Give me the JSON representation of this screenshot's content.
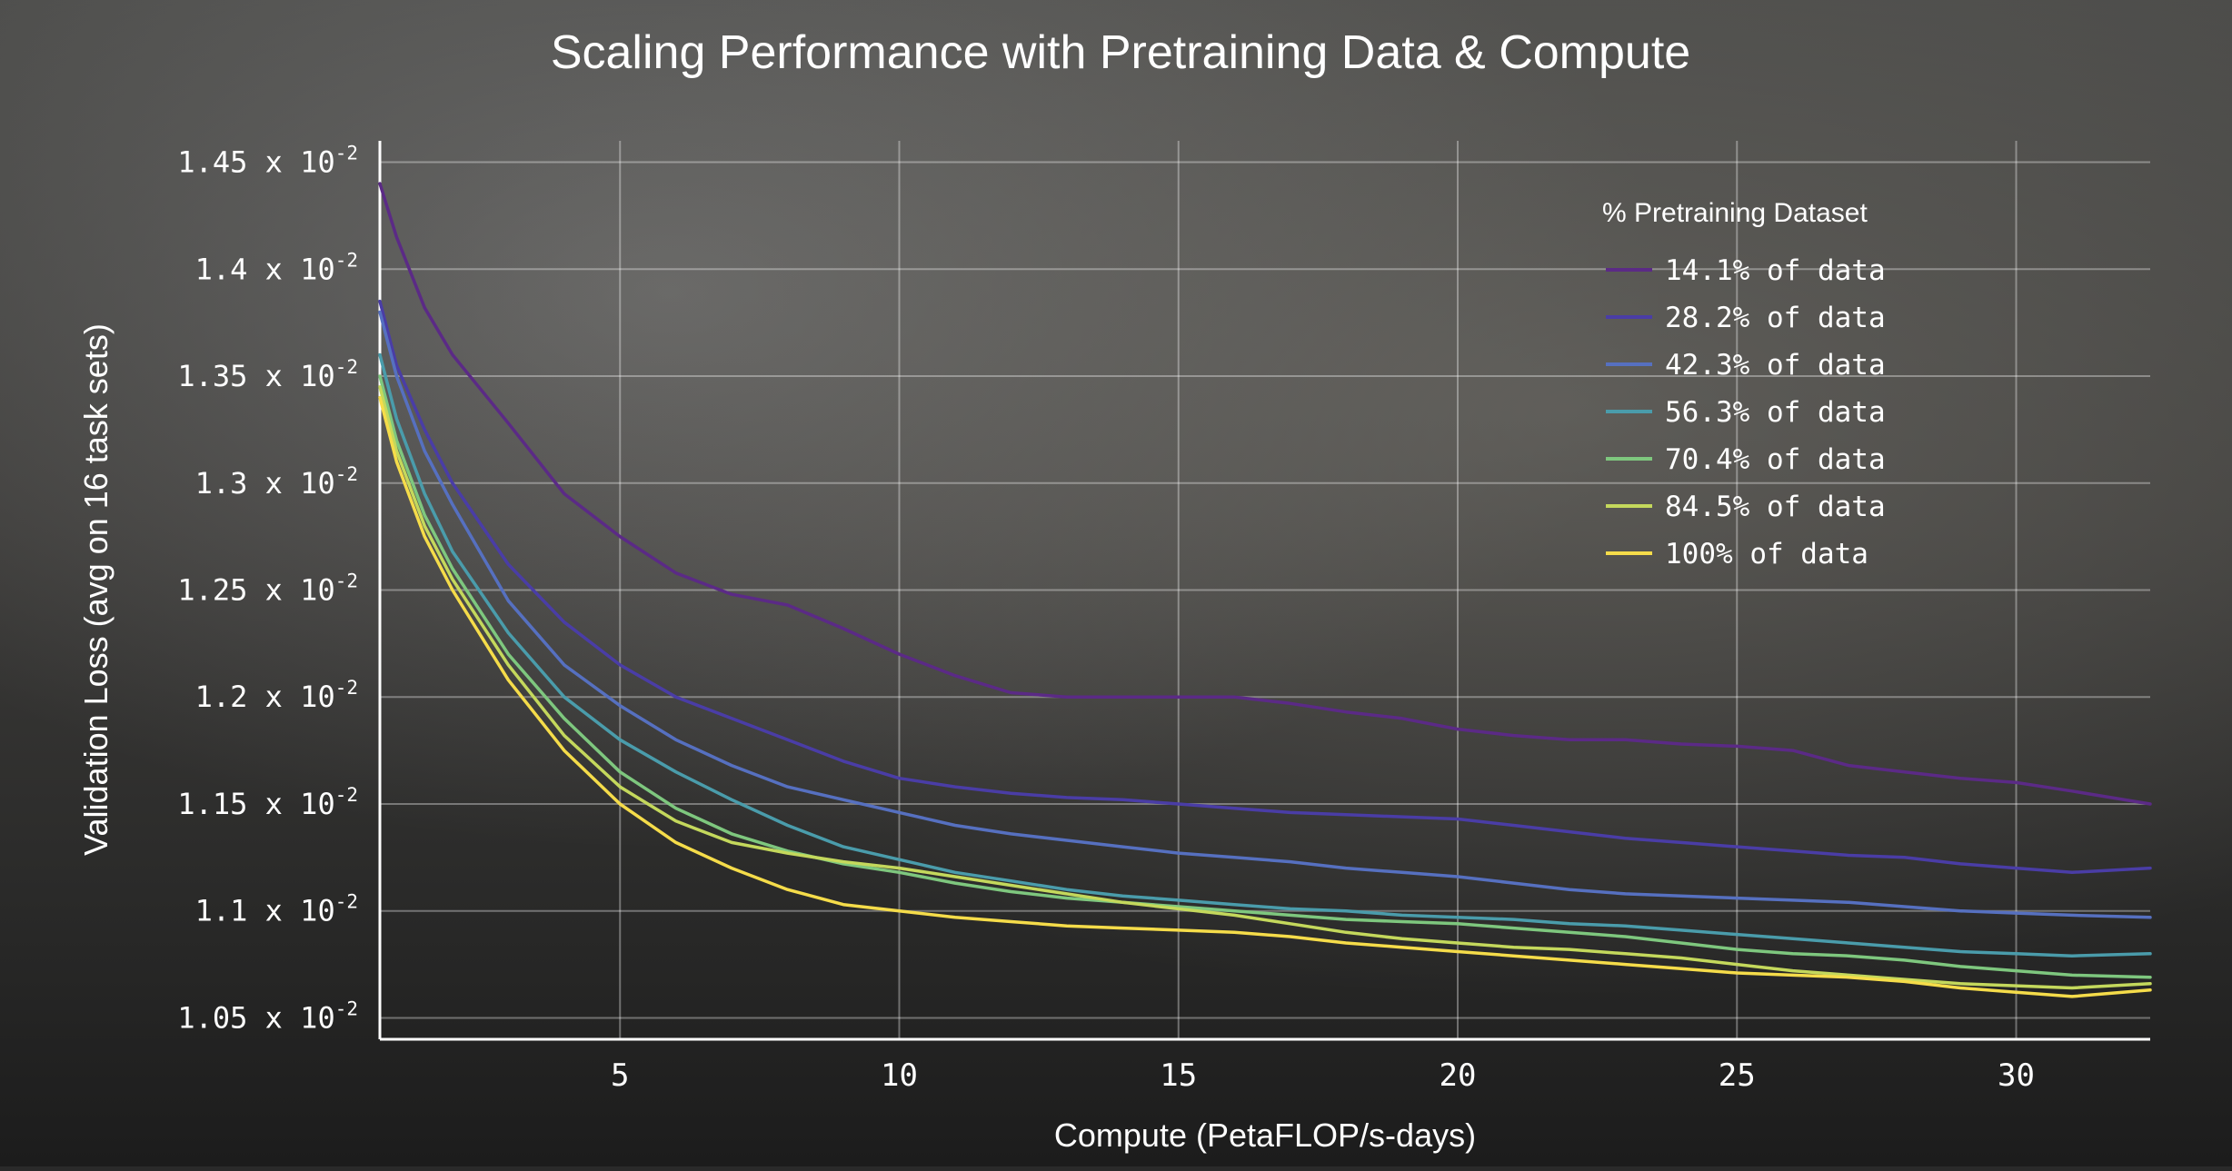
{
  "chart_data": {
    "type": "line",
    "title": "Scaling Performance with Pretraining Data & Compute",
    "xlabel": "Compute (PetaFLOP/s-days)",
    "ylabel": "Validation Loss (avg on 16 task sets)",
    "xlim": [
      0.7,
      32.4
    ],
    "ylim": [
      1.04,
      1.46
    ],
    "grid": true,
    "legend_position": "top-right",
    "legend_title": "% Pretraining Dataset",
    "x_ticks": [
      5,
      10,
      15,
      20,
      25,
      30
    ],
    "x_tick_labels": [
      "5",
      "10",
      "15",
      "20",
      "25",
      "30"
    ],
    "y_ticks": [
      1.05,
      1.1,
      1.15,
      1.2,
      1.25,
      1.3,
      1.35,
      1.4,
      1.45
    ],
    "y_tick_mantissa": [
      "1.05",
      "1.1",
      "1.15",
      "1.2",
      "1.25",
      "1.3",
      "1.35",
      "1.4",
      "1.45"
    ],
    "y_tick_base": "x 10",
    "y_tick_exp": "-2",
    "x": [
      0.7,
      1,
      1.5,
      2,
      3,
      4,
      5,
      6,
      7,
      8,
      9,
      10,
      11,
      12,
      13,
      14,
      15,
      16,
      17,
      18,
      19,
      20,
      21,
      22,
      23,
      24,
      25,
      26,
      27,
      28,
      29,
      30,
      31,
      32.4
    ],
    "series": [
      {
        "name": "14.1% of data",
        "color": "#5b2a86",
        "values": [
          1.44,
          1.415,
          1.382,
          1.36,
          1.328,
          1.295,
          1.275,
          1.258,
          1.248,
          1.243,
          1.232,
          1.22,
          1.21,
          1.202,
          1.2,
          1.2,
          1.2,
          1.2,
          1.197,
          1.193,
          1.19,
          1.185,
          1.182,
          1.18,
          1.18,
          1.178,
          1.177,
          1.175,
          1.168,
          1.165,
          1.162,
          1.16,
          1.156,
          1.15
        ]
      },
      {
        "name": "28.2% of data",
        "color": "#4a3da6",
        "values": [
          1.385,
          1.355,
          1.325,
          1.3,
          1.262,
          1.235,
          1.215,
          1.2,
          1.19,
          1.18,
          1.17,
          1.162,
          1.158,
          1.155,
          1.153,
          1.152,
          1.15,
          1.148,
          1.146,
          1.145,
          1.144,
          1.143,
          1.14,
          1.137,
          1.134,
          1.132,
          1.13,
          1.128,
          1.126,
          1.125,
          1.122,
          1.12,
          1.118,
          1.12
        ]
      },
      {
        "name": "42.3% of data",
        "color": "#5670c0",
        "values": [
          1.38,
          1.35,
          1.315,
          1.29,
          1.245,
          1.215,
          1.196,
          1.18,
          1.168,
          1.158,
          1.152,
          1.146,
          1.14,
          1.136,
          1.133,
          1.13,
          1.127,
          1.125,
          1.123,
          1.12,
          1.118,
          1.116,
          1.113,
          1.11,
          1.108,
          1.107,
          1.106,
          1.105,
          1.104,
          1.102,
          1.1,
          1.099,
          1.098,
          1.097
        ]
      },
      {
        "name": "56.3% of data",
        "color": "#4a9cab",
        "values": [
          1.36,
          1.33,
          1.295,
          1.268,
          1.23,
          1.2,
          1.18,
          1.165,
          1.152,
          1.14,
          1.13,
          1.124,
          1.118,
          1.114,
          1.11,
          1.107,
          1.105,
          1.103,
          1.101,
          1.1,
          1.098,
          1.097,
          1.096,
          1.094,
          1.093,
          1.091,
          1.089,
          1.087,
          1.085,
          1.083,
          1.081,
          1.08,
          1.079,
          1.08
        ]
      },
      {
        "name": "70.4% of data",
        "color": "#7ec77e",
        "values": [
          1.35,
          1.32,
          1.285,
          1.26,
          1.22,
          1.19,
          1.165,
          1.148,
          1.136,
          1.128,
          1.122,
          1.118,
          1.113,
          1.109,
          1.106,
          1.104,
          1.102,
          1.1,
          1.098,
          1.096,
          1.095,
          1.094,
          1.092,
          1.09,
          1.088,
          1.085,
          1.082,
          1.08,
          1.079,
          1.077,
          1.074,
          1.072,
          1.07,
          1.069
        ]
      },
      {
        "name": "84.5% of data",
        "color": "#c4d85c",
        "values": [
          1.345,
          1.315,
          1.28,
          1.255,
          1.215,
          1.182,
          1.158,
          1.142,
          1.132,
          1.127,
          1.123,
          1.12,
          1.116,
          1.112,
          1.108,
          1.104,
          1.101,
          1.098,
          1.094,
          1.09,
          1.087,
          1.085,
          1.083,
          1.082,
          1.08,
          1.078,
          1.075,
          1.072,
          1.07,
          1.068,
          1.066,
          1.065,
          1.064,
          1.066
        ]
      },
      {
        "name": "100% of data",
        "color": "#f5dc4a",
        "values": [
          1.34,
          1.31,
          1.275,
          1.25,
          1.208,
          1.175,
          1.15,
          1.132,
          1.12,
          1.11,
          1.103,
          1.1,
          1.097,
          1.095,
          1.093,
          1.092,
          1.091,
          1.09,
          1.088,
          1.085,
          1.083,
          1.081,
          1.079,
          1.077,
          1.075,
          1.073,
          1.071,
          1.07,
          1.069,
          1.067,
          1.064,
          1.062,
          1.06,
          1.063
        ]
      }
    ]
  }
}
